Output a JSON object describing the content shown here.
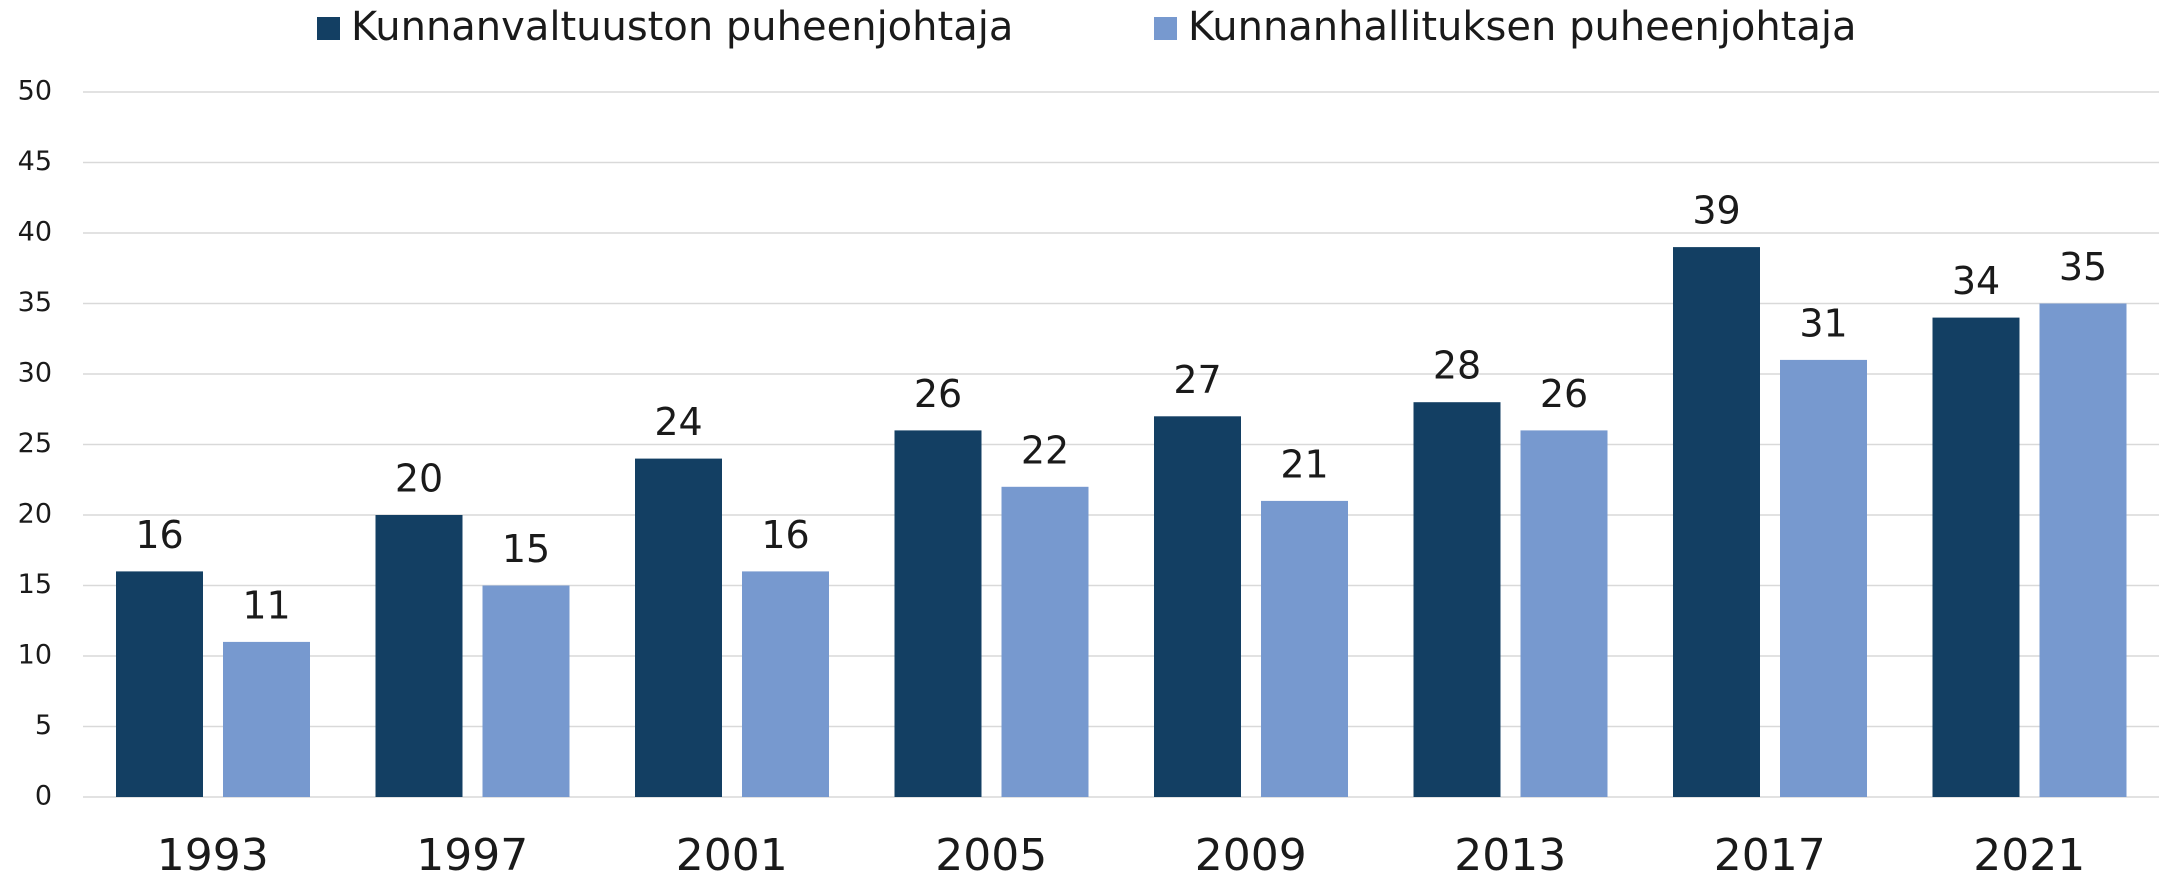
{
  "chart_data": {
    "type": "bar",
    "categories": [
      "1993",
      "1997",
      "2001",
      "2005",
      "2009",
      "2013",
      "2017",
      "2021"
    ],
    "series": [
      {
        "name": "Kunnanvaltuuston puheenjohtaja",
        "color": "#133f63",
        "values": [
          16,
          20,
          24,
          26,
          27,
          28,
          39,
          34
        ]
      },
      {
        "name": "Kunnanhallituksen puheenjohtaja",
        "color": "#7799cf",
        "values": [
          11,
          15,
          16,
          22,
          21,
          26,
          31,
          35
        ]
      }
    ],
    "ylim": [
      0,
      50
    ],
    "yticks": [
      0,
      5,
      10,
      15,
      20,
      25,
      30,
      35,
      40,
      45,
      50
    ],
    "grid": true,
    "legend": "top"
  }
}
